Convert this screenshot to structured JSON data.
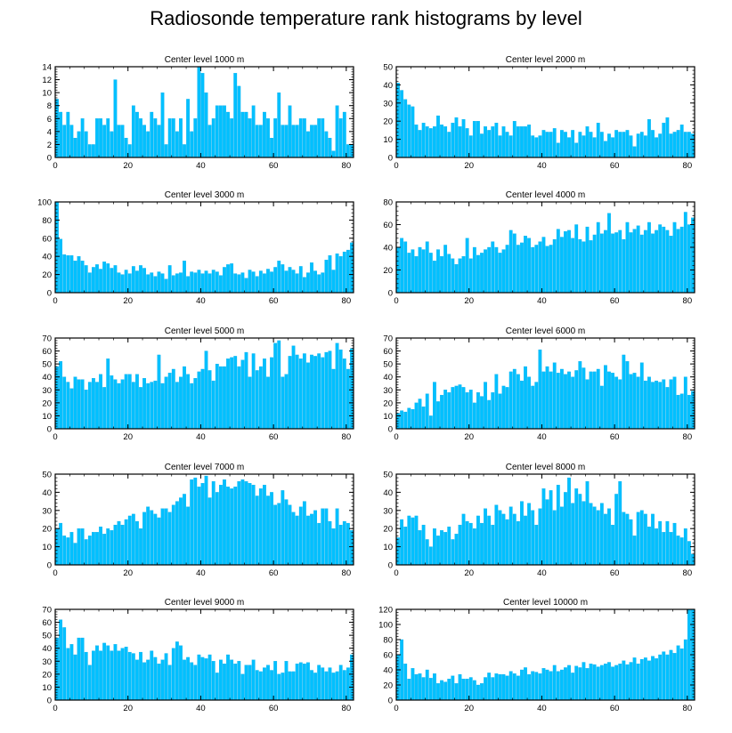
{
  "title": "Radiosonde temperature rank histograms by level",
  "colors": {
    "bar": "#00c0ff",
    "bar_edge": "#00a8e8",
    "axis": "#000000"
  },
  "chart_data": [
    {
      "type": "bar",
      "title": "Center level 1000 m",
      "xlim": [
        0,
        82
      ],
      "ylim": [
        0,
        14
      ],
      "xticks": [
        0,
        20,
        40,
        60,
        80
      ],
      "yticks": [
        0,
        2,
        4,
        6,
        8,
        10,
        12,
        14
      ],
      "values": [
        9,
        7,
        5,
        7,
        5,
        3,
        4,
        6,
        4,
        2,
        2,
        6,
        6,
        5,
        6,
        4,
        12,
        5,
        5,
        3,
        2,
        8,
        7,
        6,
        5,
        4,
        7,
        6,
        5,
        10,
        2,
        6,
        6,
        4,
        6,
        2,
        9,
        4,
        6,
        14,
        13,
        10,
        5,
        6,
        8,
        8,
        8,
        7,
        6,
        13,
        11,
        7,
        7,
        6,
        8,
        5,
        5,
        7,
        6,
        3,
        6,
        10,
        5,
        5,
        8,
        5,
        5,
        6,
        6,
        4,
        5,
        5,
        6,
        6,
        4,
        3,
        1,
        8,
        6,
        7,
        2,
        2
      ]
    },
    {
      "type": "bar",
      "title": "Center level 2000 m",
      "xlim": [
        0,
        82
      ],
      "ylim": [
        0,
        50
      ],
      "xticks": [
        0,
        20,
        40,
        60,
        80
      ],
      "yticks": [
        0,
        10,
        20,
        30,
        40,
        50
      ],
      "values": [
        41,
        37,
        32,
        29,
        28,
        18,
        15,
        19,
        17,
        16,
        17,
        23,
        18,
        17,
        14,
        19,
        22,
        17,
        21,
        16,
        12,
        20,
        20,
        13,
        17,
        15,
        17,
        19,
        12,
        17,
        14,
        12,
        20,
        17,
        17,
        17,
        18,
        12,
        11,
        12,
        15,
        14,
        14,
        16,
        8,
        15,
        14,
        11,
        15,
        8,
        14,
        12,
        17,
        14,
        11,
        19,
        14,
        9,
        13,
        11,
        15,
        14,
        14,
        15,
        12,
        6,
        13,
        14,
        12,
        21,
        15,
        11,
        13,
        19,
        22,
        13,
        14,
        15,
        18,
        14,
        14,
        13
      ]
    },
    {
      "type": "bar",
      "title": "Center level 3000 m",
      "xlim": [
        0,
        82
      ],
      "ylim": [
        0,
        100
      ],
      "xticks": [
        0,
        20,
        40,
        60,
        80
      ],
      "yticks": [
        0,
        20,
        40,
        60,
        80,
        100
      ],
      "values": [
        100,
        59,
        42,
        41,
        41,
        35,
        40,
        35,
        30,
        22,
        28,
        31,
        26,
        34,
        32,
        27,
        30,
        22,
        20,
        25,
        21,
        29,
        24,
        30,
        27,
        20,
        22,
        18,
        23,
        21,
        15,
        30,
        19,
        21,
        22,
        35,
        18,
        23,
        22,
        25,
        21,
        24,
        21,
        25,
        23,
        19,
        28,
        31,
        32,
        21,
        20,
        22,
        16,
        25,
        23,
        18,
        24,
        21,
        26,
        23,
        28,
        35,
        31,
        24,
        28,
        25,
        21,
        29,
        17,
        22,
        33,
        24,
        20,
        22,
        36,
        41,
        25,
        43,
        40,
        45,
        47,
        55
      ]
    },
    {
      "type": "bar",
      "title": "Center level 4000 m",
      "xlim": [
        0,
        82
      ],
      "ylim": [
        0,
        80
      ],
      "xticks": [
        0,
        20,
        40,
        60,
        80
      ],
      "yticks": [
        0,
        20,
        40,
        60,
        80
      ],
      "values": [
        40,
        48,
        45,
        35,
        38,
        32,
        40,
        38,
        45,
        35,
        28,
        38,
        32,
        42,
        34,
        30,
        25,
        30,
        32,
        48,
        30,
        40,
        33,
        35,
        38,
        40,
        45,
        40,
        35,
        38,
        42,
        55,
        52,
        42,
        44,
        50,
        48,
        40,
        42,
        45,
        49,
        41,
        42,
        47,
        56,
        49,
        54,
        55,
        48,
        60,
        47,
        45,
        58,
        46,
        51,
        62,
        52,
        55,
        70,
        52,
        53,
        55,
        47,
        62,
        53,
        56,
        59,
        51,
        55,
        62,
        52,
        55,
        60,
        58,
        55,
        50,
        62,
        56,
        58,
        71,
        60,
        66
      ]
    },
    {
      "type": "bar",
      "title": "Center level 5000 m",
      "xlim": [
        0,
        82
      ],
      "ylim": [
        0,
        70
      ],
      "xticks": [
        0,
        20,
        40,
        60,
        80
      ],
      "yticks": [
        0,
        10,
        20,
        30,
        40,
        50,
        60,
        70
      ],
      "values": [
        48,
        52,
        40,
        36,
        31,
        40,
        38,
        38,
        30,
        36,
        39,
        36,
        42,
        32,
        54,
        41,
        38,
        35,
        38,
        42,
        42,
        36,
        42,
        32,
        39,
        35,
        36,
        37,
        57,
        35,
        40,
        43,
        46,
        36,
        40,
        48,
        42,
        35,
        39,
        44,
        46,
        60,
        45,
        37,
        50,
        48,
        48,
        54,
        55,
        56,
        48,
        53,
        59,
        40,
        58,
        45,
        48,
        54,
        40,
        55,
        66,
        68,
        40,
        42,
        56,
        64,
        57,
        54,
        58,
        51,
        57,
        56,
        58,
        55,
        59,
        60,
        46,
        66,
        61,
        54,
        46,
        62
      ]
    },
    {
      "type": "bar",
      "title": "Center level 6000 m",
      "xlim": [
        0,
        82
      ],
      "ylim": [
        0,
        70
      ],
      "xticks": [
        0,
        20,
        40,
        60,
        80
      ],
      "yticks": [
        0,
        10,
        20,
        30,
        40,
        50,
        60,
        70
      ],
      "values": [
        12,
        14,
        13,
        16,
        15,
        20,
        23,
        17,
        27,
        10,
        36,
        21,
        26,
        30,
        28,
        32,
        33,
        34,
        32,
        28,
        30,
        20,
        28,
        25,
        36,
        22,
        28,
        42,
        27,
        33,
        32,
        44,
        46,
        42,
        37,
        48,
        40,
        33,
        36,
        61,
        44,
        48,
        44,
        51,
        43,
        46,
        42,
        44,
        40,
        45,
        52,
        47,
        38,
        44,
        44,
        46,
        33,
        49,
        44,
        43,
        40,
        38,
        57,
        52,
        42,
        43,
        40,
        51,
        37,
        40,
        36,
        37,
        36,
        38,
        32,
        38,
        40,
        26,
        27,
        40,
        26,
        29
      ]
    },
    {
      "type": "bar",
      "title": "Center level 7000 m",
      "xlim": [
        0,
        82
      ],
      "ylim": [
        0,
        50
      ],
      "xticks": [
        0,
        20,
        40,
        60,
        80
      ],
      "yticks": [
        0,
        10,
        20,
        30,
        40,
        50
      ],
      "values": [
        20,
        23,
        16,
        15,
        18,
        12,
        20,
        20,
        14,
        16,
        18,
        18,
        21,
        17,
        20,
        19,
        22,
        24,
        22,
        25,
        27,
        28,
        24,
        20,
        29,
        32,
        30,
        28,
        26,
        31,
        31,
        29,
        33,
        35,
        37,
        39,
        32,
        47,
        48,
        43,
        45,
        49,
        37,
        46,
        40,
        44,
        47,
        43,
        42,
        43,
        46,
        47,
        46,
        45,
        44,
        38,
        42,
        44,
        38,
        40,
        33,
        34,
        41,
        36,
        33,
        29,
        27,
        32,
        35,
        27,
        28,
        30,
        23,
        31,
        31,
        24,
        20,
        31,
        22,
        24,
        23,
        19
      ]
    },
    {
      "type": "bar",
      "title": "Center level 8000 m",
      "xlim": [
        0,
        82
      ],
      "ylim": [
        0,
        50
      ],
      "xticks": [
        0,
        20,
        40,
        60,
        80
      ],
      "yticks": [
        0,
        10,
        20,
        30,
        40,
        50
      ],
      "values": [
        15,
        25,
        21,
        27,
        26,
        27,
        19,
        22,
        14,
        10,
        20,
        16,
        19,
        18,
        21,
        14,
        17,
        22,
        28,
        24,
        23,
        20,
        27,
        23,
        31,
        27,
        22,
        33,
        30,
        28,
        25,
        32,
        28,
        24,
        35,
        27,
        34,
        30,
        22,
        31,
        42,
        36,
        41,
        30,
        44,
        32,
        40,
        48,
        34,
        42,
        39,
        35,
        46,
        34,
        32,
        30,
        34,
        28,
        31,
        22,
        39,
        46,
        29,
        28,
        25,
        16,
        29,
        30,
        28,
        21,
        28,
        20,
        24,
        18,
        24,
        18,
        23,
        16,
        15,
        20,
        13,
        6
      ]
    },
    {
      "type": "bar",
      "title": "Center level 9000 m",
      "xlim": [
        0,
        82
      ],
      "ylim": [
        0,
        70
      ],
      "xticks": [
        0,
        20,
        40,
        60,
        80
      ],
      "yticks": [
        0,
        10,
        20,
        30,
        40,
        50,
        60,
        70
      ],
      "values": [
        48,
        62,
        56,
        40,
        43,
        35,
        48,
        48,
        37,
        27,
        38,
        42,
        38,
        44,
        42,
        38,
        43,
        38,
        40,
        41,
        37,
        36,
        31,
        37,
        29,
        31,
        38,
        33,
        28,
        31,
        36,
        27,
        40,
        45,
        42,
        31,
        33,
        29,
        27,
        35,
        33,
        32,
        35,
        30,
        21,
        31,
        28,
        35,
        31,
        28,
        30,
        20,
        27,
        27,
        31,
        23,
        22,
        25,
        27,
        23,
        30,
        20,
        21,
        30,
        22,
        22,
        28,
        29,
        28,
        29,
        23,
        21,
        27,
        25,
        22,
        25,
        21,
        22,
        27,
        23,
        25,
        35
      ]
    },
    {
      "type": "bar",
      "title": "Center level 10000 m",
      "xlim": [
        0,
        82
      ],
      "ylim": [
        0,
        120
      ],
      "xticks": [
        0,
        20,
        40,
        60,
        80
      ],
      "yticks": [
        0,
        20,
        40,
        60,
        80,
        100,
        120
      ],
      "values": [
        60,
        80,
        48,
        28,
        42,
        34,
        35,
        30,
        40,
        29,
        35,
        22,
        26,
        24,
        28,
        32,
        22,
        34,
        28,
        28,
        30,
        26,
        20,
        22,
        30,
        36,
        30,
        35,
        34,
        34,
        32,
        38,
        35,
        32,
        40,
        43,
        34,
        38,
        37,
        35,
        42,
        40,
        38,
        46,
        38,
        40,
        43,
        46,
        36,
        45,
        43,
        50,
        42,
        48,
        47,
        44,
        46,
        48,
        50,
        44,
        46,
        48,
        52,
        47,
        50,
        56,
        48,
        54,
        56,
        52,
        58,
        55,
        60,
        64,
        60,
        66,
        62,
        72,
        68,
        80,
        120,
        120
      ]
    }
  ]
}
